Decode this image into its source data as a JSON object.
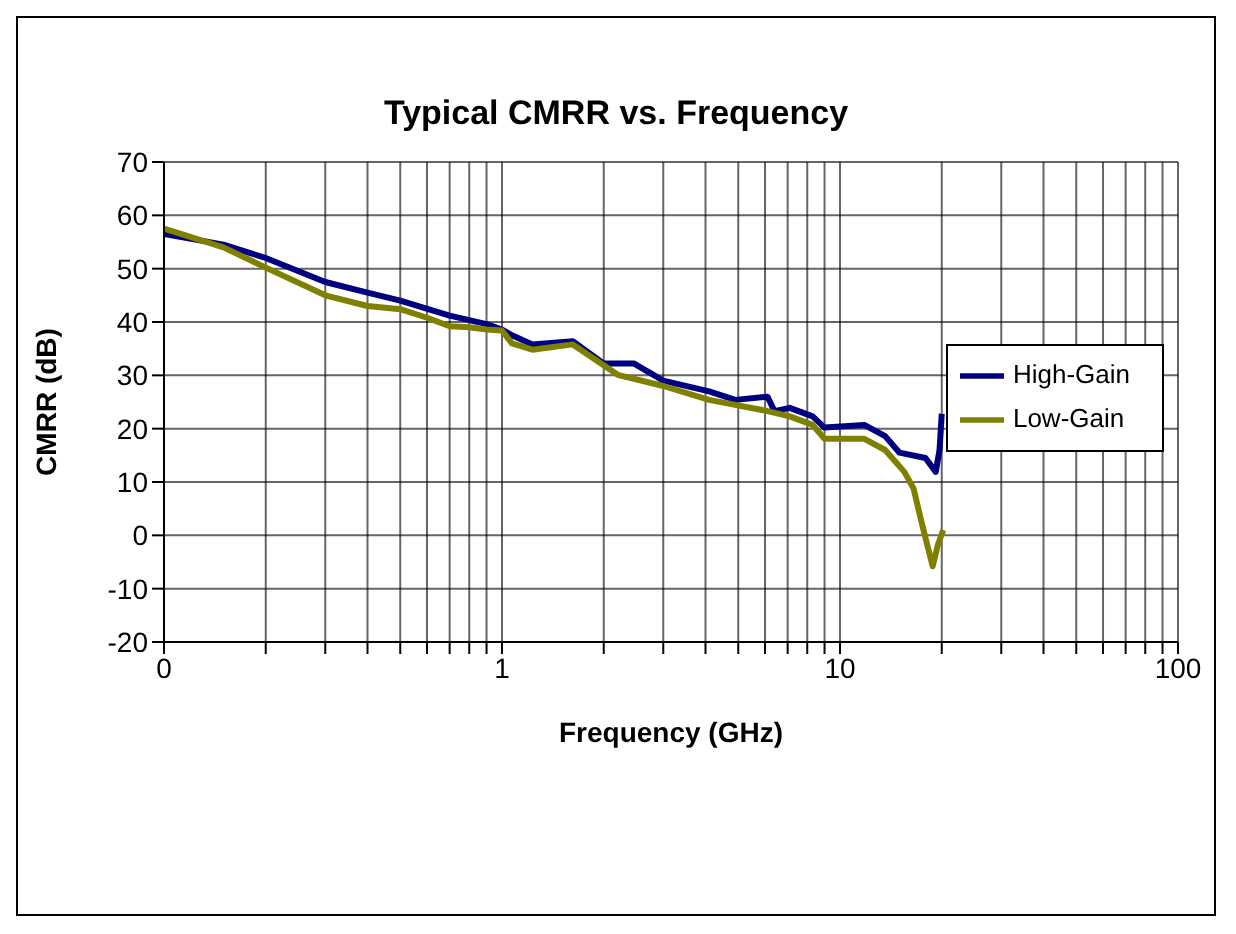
{
  "chart_data": {
    "type": "line",
    "title": "Typical CMRR vs. Frequency",
    "xlabel": "Frequency (GHz)",
    "ylabel": "CMRR (dB)",
    "log": "x",
    "grid": true,
    "legend": "top right",
    "marker": "none",
    "line_style": "solid",
    "xlim": [
      0.1,
      100
    ],
    "xticks": [
      {
        "value": 0.1,
        "label": "0"
      },
      {
        "value": 0.2,
        "label": null
      },
      {
        "value": 0.3,
        "label": null
      },
      {
        "value": 0.4,
        "label": null
      },
      {
        "value": 0.5,
        "label": null
      },
      {
        "value": 0.6,
        "label": null
      },
      {
        "value": 0.7,
        "label": null
      },
      {
        "value": 0.8,
        "label": null
      },
      {
        "value": 0.9,
        "label": null
      },
      1,
      {
        "value": 2,
        "label": null
      },
      {
        "value": 3,
        "label": null
      },
      {
        "value": 4,
        "label": null
      },
      {
        "value": 5,
        "label": null
      },
      {
        "value": 6,
        "label": null
      },
      {
        "value": 7,
        "label": null
      },
      {
        "value": 8,
        "label": null
      },
      {
        "value": 9,
        "label": null
      },
      10,
      {
        "value": 20,
        "label": null
      },
      {
        "value": 30,
        "label": null
      },
      {
        "value": 40,
        "label": null
      },
      {
        "value": 50,
        "label": null
      },
      {
        "value": 60,
        "label": null
      },
      {
        "value": 70,
        "label": null
      },
      {
        "value": 80,
        "label": null
      },
      {
        "value": 90,
        "label": null
      },
      100
    ],
    "ylim": [
      -20,
      70
    ],
    "yticks": [
      -20,
      -10,
      0,
      10,
      20,
      30,
      40,
      50,
      60,
      70
    ],
    "series": [
      {
        "name": "High-Gain",
        "color": "#000080",
        "x": [
          0.1,
          0.15,
          0.2,
          0.3,
          0.4,
          0.5,
          0.7,
          0.9,
          1.0,
          1.07,
          1.23,
          1.62,
          2.0,
          2.46,
          3.0,
          4.1,
          4.9,
          6.1,
          6.4,
          7.1,
          8.3,
          9.0,
          11.8,
          13.6,
          15,
          17.9,
          19.2,
          19.7,
          20
        ],
        "values": [
          56.5,
          54.5,
          52,
          47.5,
          45.5,
          44,
          41.2,
          39.6,
          38.6,
          37.5,
          35.8,
          36.4,
          32.2,
          32.2,
          29,
          27,
          25.4,
          26,
          23.3,
          23.9,
          22.3,
          20.2,
          20.7,
          18.6,
          15.5,
          14.5,
          11.9,
          16,
          22.8
        ]
      },
      {
        "name": "Low-Gain",
        "color": "#808000",
        "x": [
          0.1,
          0.15,
          0.2,
          0.3,
          0.4,
          0.5,
          0.6,
          0.7,
          0.8,
          0.9,
          1.0,
          1.07,
          1.23,
          1.62,
          2.2,
          3.0,
          4.1,
          6.1,
          7.1,
          8.3,
          9.0,
          11.8,
          13.6,
          15.5,
          16.5,
          17.5,
          18.8,
          19.5,
          20.2
        ],
        "values": [
          57.5,
          54,
          50.2,
          45,
          43,
          42.4,
          40.8,
          39.2,
          39,
          38.6,
          38.4,
          36,
          34.8,
          35.8,
          30.1,
          28,
          25.4,
          23.3,
          22.3,
          20.7,
          18.1,
          18.1,
          16,
          11.9,
          8.8,
          2,
          -5.8,
          -1.7,
          1
        ]
      }
    ]
  }
}
